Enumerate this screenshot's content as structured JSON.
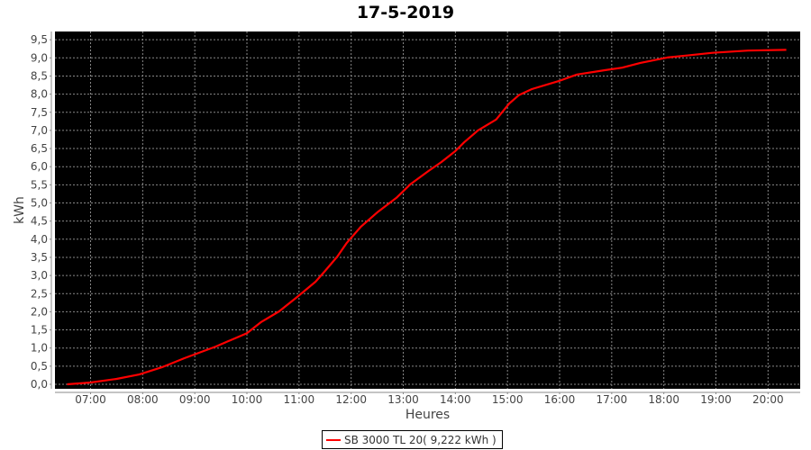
{
  "chart_data": {
    "type": "line",
    "title": "17-5-2019",
    "xlabel": "Heures",
    "ylabel": "kWh",
    "x_ticks": [
      "07:00",
      "08:00",
      "09:00",
      "10:00",
      "11:00",
      "12:00",
      "13:00",
      "14:00",
      "15:00",
      "16:00",
      "17:00",
      "18:00",
      "19:00",
      "20:00"
    ],
    "y_ticks": [
      "0,0",
      "0,5",
      "1,0",
      "1,5",
      "2,0",
      "2,5",
      "3,0",
      "3,5",
      "4,0",
      "4,5",
      "5,0",
      "5,5",
      "6,0",
      "6,5",
      "7,0",
      "7,5",
      "8,0",
      "8,5",
      "9,0",
      "9,5"
    ],
    "xlim": [
      "06:19",
      "20:37"
    ],
    "ylim": [
      0,
      9.7
    ],
    "grid": true,
    "background": "#000000",
    "grid_color": "#888888",
    "legend_position": "bottom",
    "series": [
      {
        "name": "SB 3000 TL 20( 9,222 kWh )",
        "color": "#ff0000",
        "x": [
          "06:33",
          "07:00",
          "07:30",
          "07:56",
          "08:22",
          "08:48",
          "09:24",
          "10:00",
          "10:16",
          "10:37",
          "10:58",
          "11:19",
          "11:29",
          "11:44",
          "11:55",
          "12:11",
          "12:31",
          "12:52",
          "13:08",
          "13:29",
          "13:44",
          "14:00",
          "14:10",
          "14:26",
          "14:47",
          "15:02",
          "15:13",
          "15:28",
          "15:59",
          "16:20",
          "16:52",
          "17:12",
          "17:33",
          "18:04",
          "18:56",
          "19:37",
          "20:21"
        ],
        "y": [
          0,
          0.05,
          0.15,
          0.27,
          0.47,
          0.72,
          1.04,
          1.41,
          1.71,
          2.01,
          2.41,
          2.83,
          3.1,
          3.52,
          3.9,
          4.34,
          4.76,
          5.14,
          5.51,
          5.88,
          6.13,
          6.43,
          6.67,
          7.0,
          7.3,
          7.74,
          7.97,
          8.14,
          8.36,
          8.54,
          8.66,
          8.73,
          8.86,
          9.01,
          9.14,
          9.2,
          9.222
        ]
      }
    ]
  }
}
